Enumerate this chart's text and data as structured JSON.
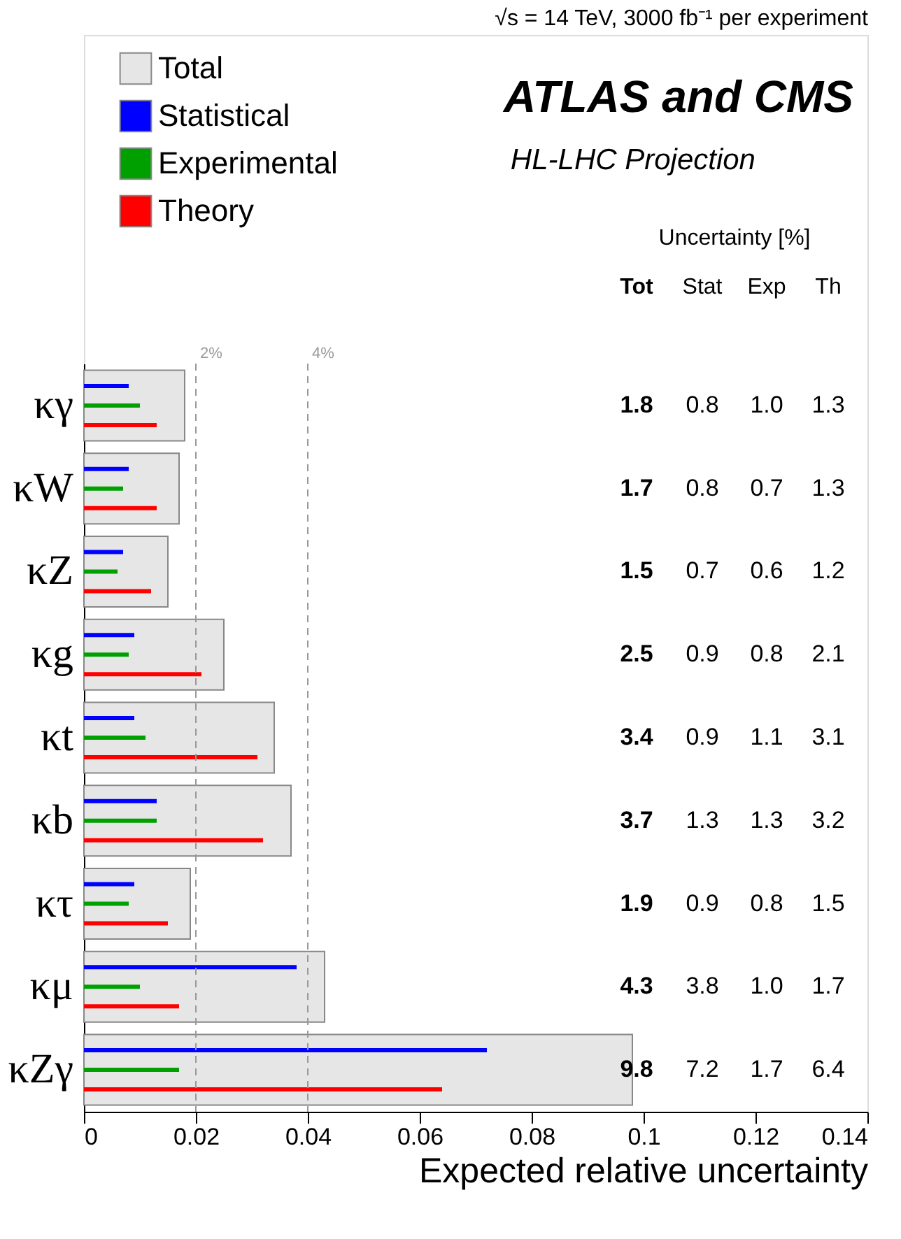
{
  "chart_data": {
    "type": "bar",
    "orientation": "horizontal",
    "title": "√s = 14 TeV, 3000 fb⁻¹ per experiment",
    "xlabel": "Expected relative uncertainty",
    "categories": [
      "κγ",
      "κW",
      "κZ",
      "κg",
      "κt",
      "κb",
      "κτ",
      "κμ",
      "κZγ"
    ],
    "series": [
      {
        "name": "Total",
        "color": "#e6e6e6",
        "values": [
          0.018,
          0.017,
          0.015,
          0.025,
          0.034,
          0.037,
          0.019,
          0.043,
          0.098
        ]
      },
      {
        "name": "Statistical",
        "color": "#0000ff",
        "values": [
          0.008,
          0.008,
          0.007,
          0.009,
          0.009,
          0.013,
          0.009,
          0.038,
          0.072
        ]
      },
      {
        "name": "Experimental",
        "color": "#00a000",
        "values": [
          0.01,
          0.007,
          0.006,
          0.008,
          0.011,
          0.013,
          0.008,
          0.01,
          0.017
        ]
      },
      {
        "name": "Theory",
        "color": "#ff0000",
        "values": [
          0.013,
          0.013,
          0.012,
          0.021,
          0.031,
          0.032,
          0.015,
          0.017,
          0.064
        ]
      }
    ],
    "xlim": [
      0,
      0.14
    ],
    "xticks": [
      0,
      0.02,
      0.04,
      0.06,
      0.08,
      0.1,
      0.12,
      0.14
    ],
    "ref_lines": [
      {
        "axis": "x",
        "value": 0.02,
        "label": "2%",
        "color": "#999999",
        "line_style": "dashed"
      },
      {
        "axis": "x",
        "value": 0.04,
        "label": "4%",
        "color": "#999999",
        "line_style": "dashed"
      }
    ],
    "annotations": [
      "ATLAS and CMS",
      "HL-LHC Projection",
      "Uncertainty [%]",
      "Tot",
      "Stat",
      "Exp",
      "Th",
      "1.8",
      "0.8",
      "1.0",
      "1.3",
      "1.7",
      "0.8",
      "0.7",
      "1.3",
      "1.5",
      "0.7",
      "0.6",
      "1.2",
      "2.5",
      "0.9",
      "0.8",
      "2.1",
      "3.4",
      "0.9",
      "1.1",
      "3.1",
      "3.7",
      "1.3",
      "1.3",
      "3.2",
      "1.9",
      "0.9",
      "0.8",
      "1.5",
      "4.3",
      "3.8",
      "1.0",
      "1.7",
      "9.8",
      "7.2",
      "1.7",
      "6.4"
    ],
    "legend": "top left",
    "grid": false
  }
}
